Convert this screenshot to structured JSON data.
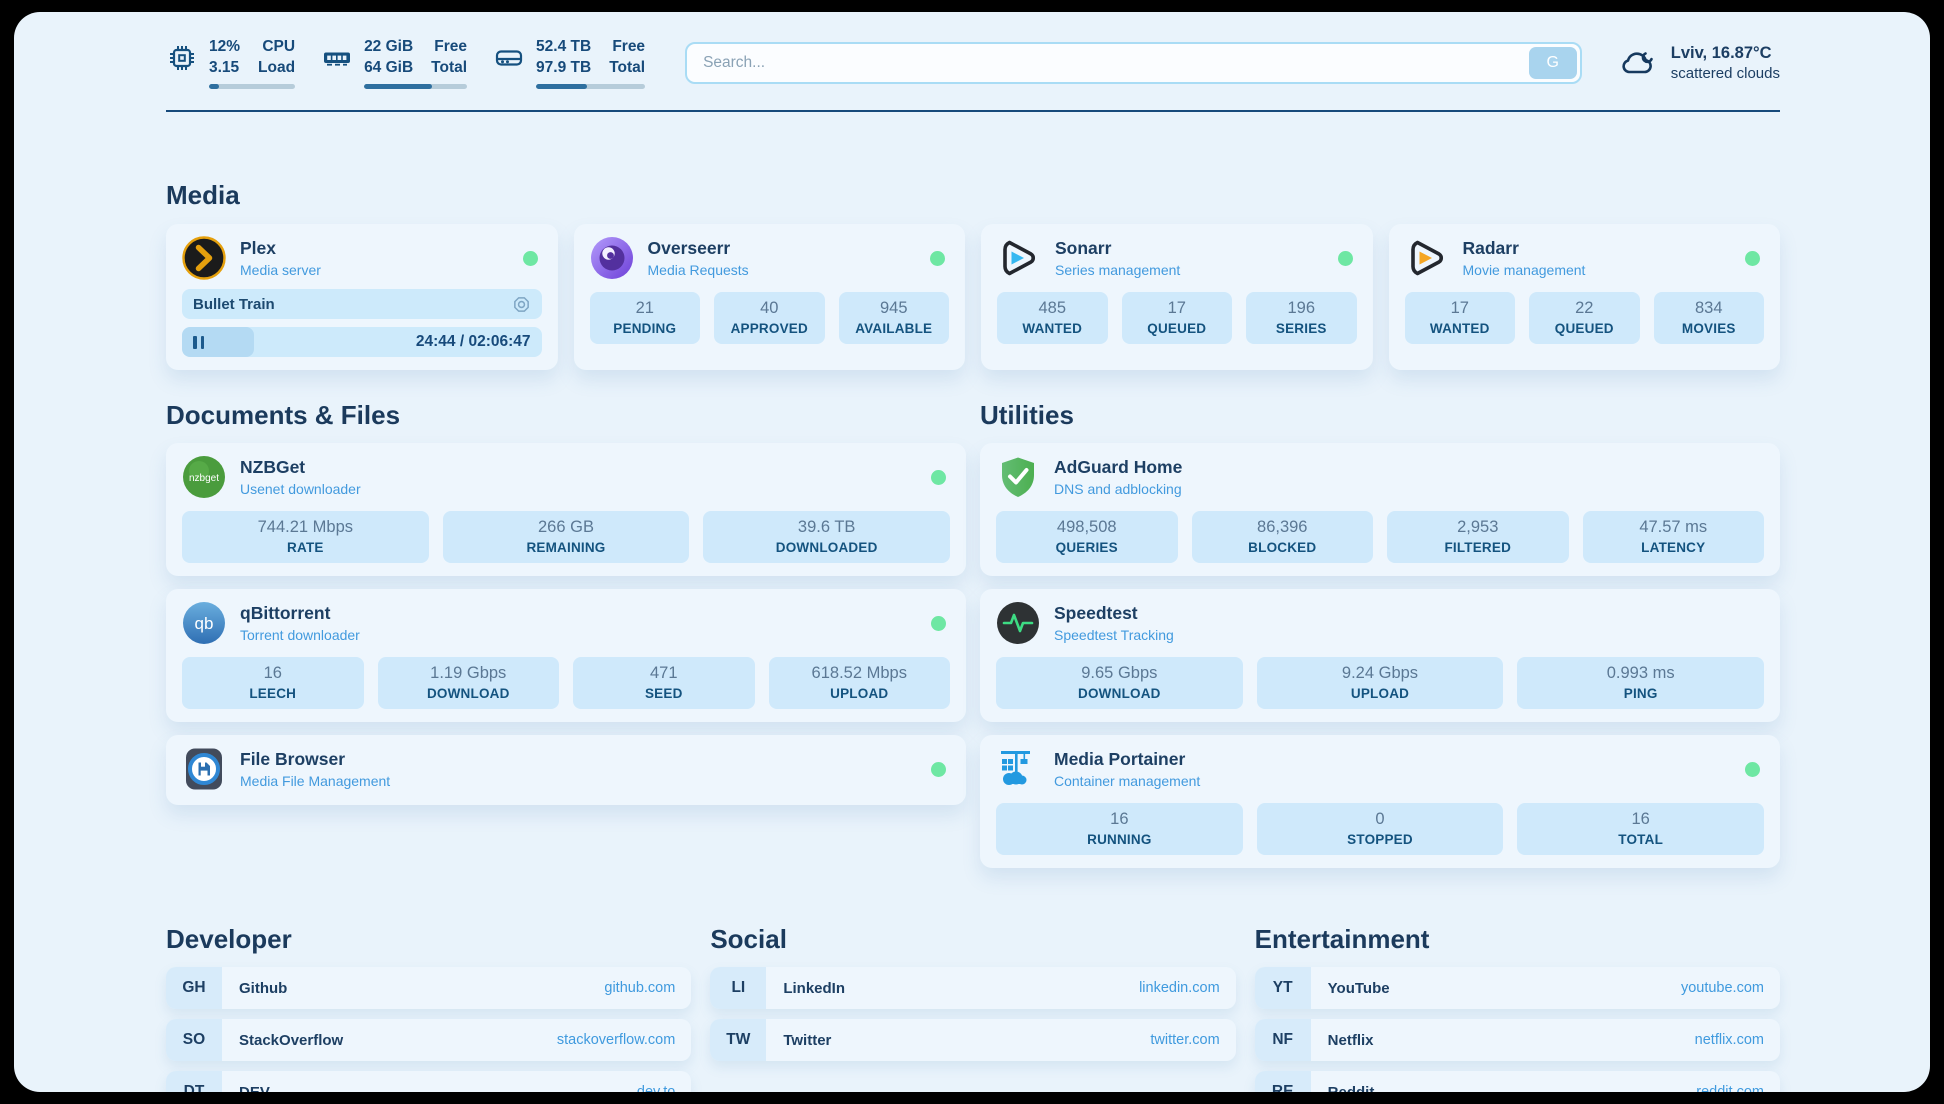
{
  "topbar": {
    "cpu": {
      "icon": "cpu-chip-icon",
      "value_line1": "12%",
      "value_line2": "3.15",
      "label_line1": "CPU",
      "label_line2": "Load",
      "progress_pct": 12
    },
    "memory": {
      "icon": "ram-icon",
      "value_line1": "22 GiB",
      "value_line2": "64 GiB",
      "label_line1": "Free",
      "label_line2": "Total",
      "progress_pct": 66
    },
    "disk": {
      "icon": "hard-drive-icon",
      "value_line1": "52.4 TB",
      "value_line2": "97.9 TB",
      "label_line1": "Free",
      "label_line2": "Total",
      "progress_pct": 47
    },
    "search": {
      "placeholder": "Search...",
      "button_label": "G"
    },
    "weather": {
      "icon": "cloud-icon",
      "line1": "Lviv, 16.87°C",
      "line2": "scattered clouds"
    }
  },
  "media": {
    "title": "Media",
    "plex": {
      "icon": "plex-icon",
      "title": "Plex",
      "subtitle": "Media server",
      "status": "online",
      "now_playing": "Bullet Train",
      "time_display": "24:44 / 02:06:47",
      "progress_pct": 20
    },
    "overseerr": {
      "icon": "overseerr-icon",
      "title": "Overseerr",
      "subtitle": "Media Requests",
      "status": "online",
      "stats": [
        {
          "value": "21",
          "label": "PENDING"
        },
        {
          "value": "40",
          "label": "APPROVED"
        },
        {
          "value": "945",
          "label": "AVAILABLE"
        }
      ]
    },
    "sonarr": {
      "icon": "sonarr-icon",
      "title": "Sonarr",
      "subtitle": "Series management",
      "status": "online",
      "stats": [
        {
          "value": "485",
          "label": "WANTED"
        },
        {
          "value": "17",
          "label": "QUEUED"
        },
        {
          "value": "196",
          "label": "SERIES"
        }
      ]
    },
    "radarr": {
      "icon": "radarr-icon",
      "title": "Radarr",
      "subtitle": "Movie management",
      "status": "online",
      "stats": [
        {
          "value": "17",
          "label": "WANTED"
        },
        {
          "value": "22",
          "label": "QUEUED"
        },
        {
          "value": "834",
          "label": "MOVIES"
        }
      ]
    }
  },
  "documents": {
    "title": "Documents & Files",
    "nzbget": {
      "icon": "nzbget-icon",
      "title": "NZBGet",
      "subtitle": "Usenet downloader",
      "status": "online",
      "stats": [
        {
          "value": "744.21 Mbps",
          "label": "RATE"
        },
        {
          "value": "266 GB",
          "label": "REMAINING"
        },
        {
          "value": "39.6 TB",
          "label": "DOWNLOADED"
        }
      ]
    },
    "qbittorrent": {
      "icon": "qbittorrent-icon",
      "title": "qBittorrent",
      "subtitle": "Torrent downloader",
      "status": "online",
      "stats": [
        {
          "value": "16",
          "label": "LEECH"
        },
        {
          "value": "1.19 Gbps",
          "label": "DOWNLOAD"
        },
        {
          "value": "471",
          "label": "SEED"
        },
        {
          "value": "618.52 Mbps",
          "label": "UPLOAD"
        }
      ]
    },
    "filebrowser": {
      "icon": "filebrowser-icon",
      "title": "File Browser",
      "subtitle": "Media File Management",
      "status": "online"
    }
  },
  "utilities": {
    "title": "Utilities",
    "adguard": {
      "icon": "adguard-shield-icon",
      "title": "AdGuard Home",
      "subtitle": "DNS and adblocking",
      "stats": [
        {
          "value": "498,508",
          "label": "QUERIES"
        },
        {
          "value": "86,396",
          "label": "BLOCKED"
        },
        {
          "value": "2,953",
          "label": "FILTERED"
        },
        {
          "value": "47.57 ms",
          "label": "LATENCY"
        }
      ]
    },
    "speedtest": {
      "icon": "speedtest-pulse-icon",
      "title": "Speedtest",
      "subtitle": "Speedtest Tracking",
      "stats": [
        {
          "value": "9.65 Gbps",
          "label": "DOWNLOAD"
        },
        {
          "value": "9.24 Gbps",
          "label": "UPLOAD"
        },
        {
          "value": "0.993 ms",
          "label": "PING"
        }
      ]
    },
    "portainer": {
      "icon": "portainer-crane-icon",
      "title": "Media Portainer",
      "subtitle": "Container management",
      "status": "online",
      "stats": [
        {
          "value": "16",
          "label": "RUNNING"
        },
        {
          "value": "0",
          "label": "STOPPED"
        },
        {
          "value": "16",
          "label": "TOTAL"
        }
      ]
    }
  },
  "bookmarks": {
    "developer": {
      "title": "Developer",
      "items": [
        {
          "abbr": "GH",
          "name": "Github",
          "url": "github.com"
        },
        {
          "abbr": "SO",
          "name": "StackOverflow",
          "url": "stackoverflow.com"
        },
        {
          "abbr": "DT",
          "name": "DEV",
          "url": "dev.to"
        }
      ]
    },
    "social": {
      "title": "Social",
      "items": [
        {
          "abbr": "LI",
          "name": "LinkedIn",
          "url": "linkedin.com"
        },
        {
          "abbr": "TW",
          "name": "Twitter",
          "url": "twitter.com"
        }
      ]
    },
    "entertainment": {
      "title": "Entertainment",
      "items": [
        {
          "abbr": "YT",
          "name": "YouTube",
          "url": "youtube.com"
        },
        {
          "abbr": "NF",
          "name": "Netflix",
          "url": "netflix.com"
        },
        {
          "abbr": "RE",
          "name": "Reddit",
          "url": "reddit.com"
        }
      ]
    }
  },
  "colors": {
    "page_background": "#e9f3fb",
    "frame_background": "#000000",
    "accent_link_blue": "#3f9ade",
    "dark_navy_text": "#1b3a5c",
    "stat_box_background": "#cfe9fb",
    "status_online_green": "#6ee7a3",
    "progress_fill_blue": "#2e6f9f"
  }
}
